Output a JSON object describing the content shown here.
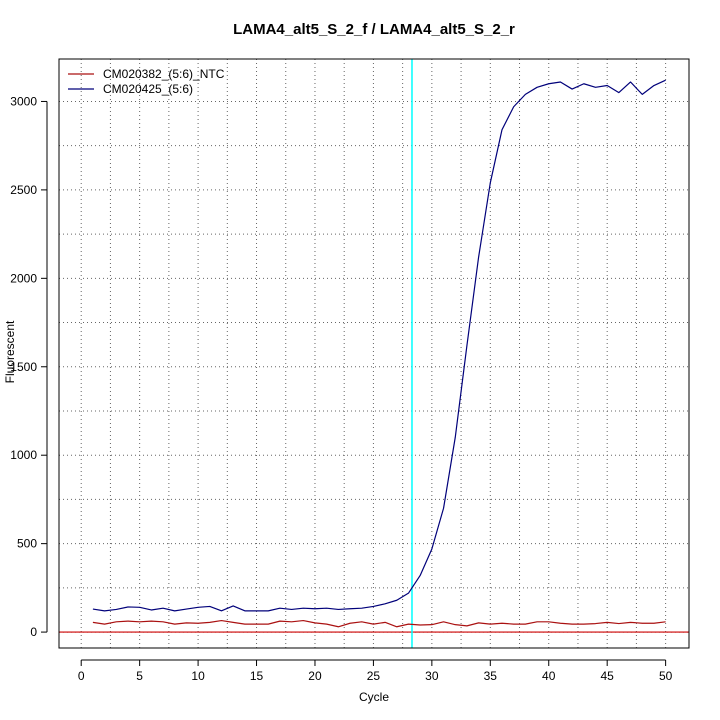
{
  "chart_data": {
    "type": "line",
    "title": "LAMA4_alt5_S_2_f / LAMA4_alt5_S_2_r",
    "xlabel": "Cycle",
    "ylabel": "Fluorescent",
    "xlim": [
      -1.9,
      52
    ],
    "ylim": [
      -90,
      3240
    ],
    "xticks": [
      "0",
      "5",
      "10",
      "15",
      "20",
      "25",
      "30",
      "35",
      "40",
      "45",
      "50"
    ],
    "yticks": [
      "0",
      "500",
      "1000",
      "1500",
      "2000",
      "2500",
      "3000"
    ],
    "grid": true,
    "legend_position": "top-left",
    "threshold_cycle": 28.3,
    "threshold_color": "#00ffff",
    "baseline_color": "#cc0000",
    "x": [
      1,
      2,
      3,
      4,
      5,
      6,
      7,
      8,
      9,
      10,
      11,
      12,
      13,
      14,
      15,
      16,
      17,
      18,
      19,
      20,
      21,
      22,
      23,
      24,
      25,
      26,
      27,
      28,
      29,
      30,
      31,
      32,
      33,
      34,
      35,
      36,
      37,
      38,
      39,
      40,
      41,
      42,
      43,
      44,
      45,
      46,
      47,
      48,
      49,
      50
    ],
    "series": [
      {
        "name": "CM020382_(5:6)_NTC",
        "color": "#aa1111",
        "values": [
          55,
          45,
          58,
          62,
          58,
          62,
          58,
          45,
          52,
          50,
          55,
          65,
          55,
          45,
          45,
          45,
          62,
          58,
          65,
          52,
          45,
          30,
          50,
          58,
          45,
          55,
          30,
          45,
          40,
          42,
          58,
          42,
          35,
          52,
          45,
          50,
          45,
          45,
          58,
          58,
          50,
          45,
          45,
          48,
          55,
          48,
          55,
          50,
          50,
          58
        ]
      },
      {
        "name": "CM020425_(5:6)",
        "color": "#00007a",
        "values": [
          130,
          120,
          128,
          142,
          140,
          125,
          135,
          120,
          130,
          140,
          145,
          120,
          148,
          120,
          120,
          120,
          135,
          128,
          135,
          132,
          135,
          128,
          132,
          135,
          145,
          160,
          180,
          220,
          320,
          470,
          700,
          1100,
          1620,
          2120,
          2540,
          2840,
          2970,
          3040,
          3080,
          3100,
          3110,
          3070,
          3100,
          3080,
          3090,
          3050,
          3110,
          3040,
          3090,
          3120
        ]
      }
    ]
  }
}
